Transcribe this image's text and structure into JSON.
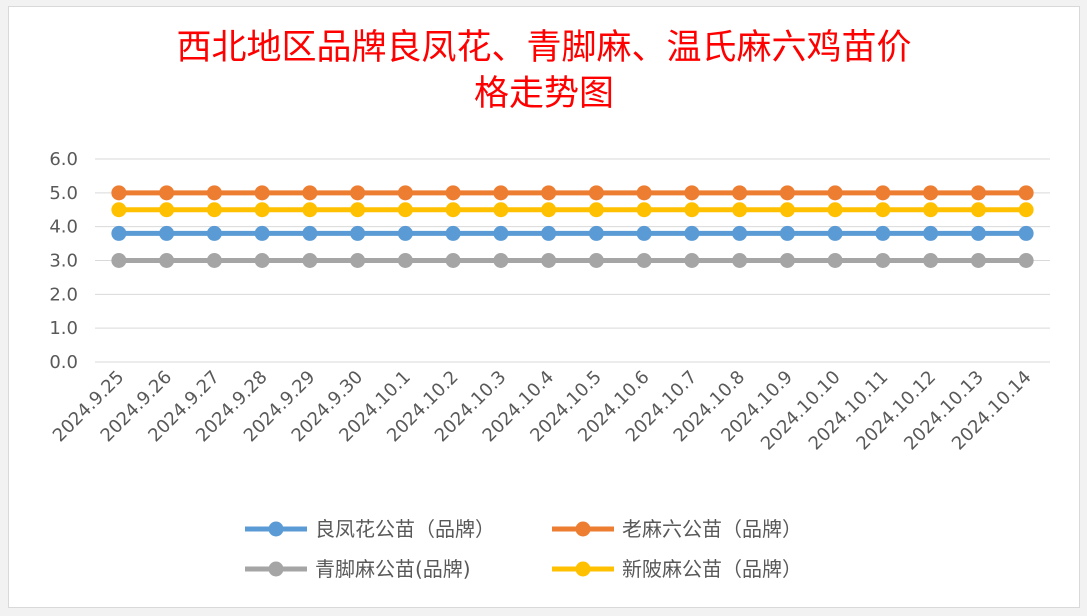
{
  "chart_data": {
    "type": "line",
    "title": "西北地区品牌良凤花、青脚麻、温氏麻六鸡苗价\n格走势图",
    "categories": [
      "2024.9.25",
      "2024.9.26",
      "2024.9.27",
      "2024.9.28",
      "2024.9.29",
      "2024.9.30",
      "2024.10.1",
      "2024.10.2",
      "2024.10.3",
      "2024.10.4",
      "2024.10.5",
      "2024.10.6",
      "2024.10.7",
      "2024.10.8",
      "2024.10.9",
      "2024.10.10",
      "2024.10.11",
      "2024.10.12",
      "2024.10.13",
      "2024.10.14"
    ],
    "y_ticks": [
      "6.0",
      "5.0",
      "4.0",
      "3.0",
      "2.0",
      "1.0",
      "0.0"
    ],
    "ylim": [
      0,
      6
    ],
    "grid": true,
    "legend_position": "bottom",
    "series": [
      {
        "name": "良凤花公苗（品牌）",
        "color": "#5b9bd5",
        "values": [
          3.8,
          3.8,
          3.8,
          3.8,
          3.8,
          3.8,
          3.8,
          3.8,
          3.8,
          3.8,
          3.8,
          3.8,
          3.8,
          3.8,
          3.8,
          3.8,
          3.8,
          3.8,
          3.8,
          3.8
        ]
      },
      {
        "name": "老麻六公苗（品牌）",
        "color": "#ed7d31",
        "values": [
          5.0,
          5.0,
          5.0,
          5.0,
          5.0,
          5.0,
          5.0,
          5.0,
          5.0,
          5.0,
          5.0,
          5.0,
          5.0,
          5.0,
          5.0,
          5.0,
          5.0,
          5.0,
          5.0,
          5.0
        ]
      },
      {
        "name": "青脚麻公苗(品牌)",
        "color": "#a5a5a5",
        "values": [
          3.0,
          3.0,
          3.0,
          3.0,
          3.0,
          3.0,
          3.0,
          3.0,
          3.0,
          3.0,
          3.0,
          3.0,
          3.0,
          3.0,
          3.0,
          3.0,
          3.0,
          3.0,
          3.0,
          3.0
        ]
      },
      {
        "name": "新陂麻公苗（品牌）",
        "color": "#ffc000",
        "values": [
          4.5,
          4.5,
          4.5,
          4.5,
          4.5,
          4.5,
          4.5,
          4.5,
          4.5,
          4.5,
          4.5,
          4.5,
          4.5,
          4.5,
          4.5,
          4.5,
          4.5,
          4.5,
          4.5,
          4.5
        ]
      }
    ]
  }
}
